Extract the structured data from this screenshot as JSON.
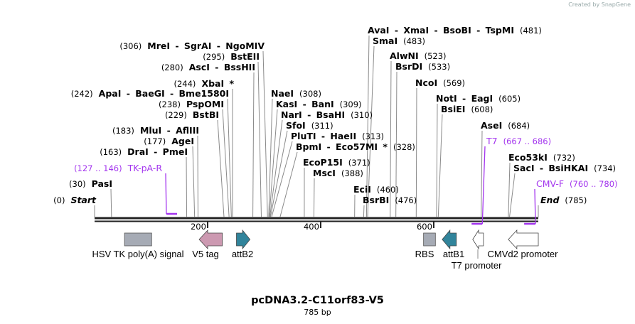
{
  "credit": "Created by SnapGene",
  "title": "pcDNA3.2-C11orf83-V5",
  "length_label": "785 bp",
  "length": 785,
  "ticks": [
    "200",
    "400",
    "600"
  ],
  "sites": [
    {
      "name": "Start",
      "pos": 0
    },
    {
      "name": "PasI",
      "pos": 30
    },
    {
      "name": "DraI - PmeI",
      "pos": 163
    },
    {
      "name": "AgeI",
      "pos": 177
    },
    {
      "name": "MluI - AflIII",
      "pos": 183
    },
    {
      "name": "BstBI",
      "pos": 229
    },
    {
      "name": "PspOMI",
      "pos": 238
    },
    {
      "name": "ApaI - BaeGI - Bme1580I",
      "pos": 242
    },
    {
      "name": "XbaI *",
      "pos": 244
    },
    {
      "name": "AscI - BssHII",
      "pos": 280
    },
    {
      "name": "BstEII",
      "pos": 295
    },
    {
      "name": "MreI - SgrAI - NgoMIV",
      "pos": 306
    },
    {
      "name": "NaeI",
      "pos": 308
    },
    {
      "name": "KasI - BanI",
      "pos": 309
    },
    {
      "name": "NarI - BsaHI",
      "pos": 310
    },
    {
      "name": "SfoI",
      "pos": 311
    },
    {
      "name": "PluTI - HaeII",
      "pos": 313
    },
    {
      "name": "BpmI - Eco57MI *",
      "pos": 328
    },
    {
      "name": "EcoP15I",
      "pos": 371
    },
    {
      "name": "MscI",
      "pos": 388
    },
    {
      "name": "EciI",
      "pos": 460
    },
    {
      "name": "BsrBI",
      "pos": 476
    },
    {
      "name": "AvaI - XmaI - BsoBI - TspMI",
      "pos": 481
    },
    {
      "name": "SmaI",
      "pos": 483
    },
    {
      "name": "AlwNI",
      "pos": 523
    },
    {
      "name": "BsrDI",
      "pos": 533
    },
    {
      "name": "NcoI",
      "pos": 569
    },
    {
      "name": "NotI - EagI",
      "pos": 605
    },
    {
      "name": "BsiEI",
      "pos": 608
    },
    {
      "name": "AseI",
      "pos": 684
    },
    {
      "name": "Eco53kI",
      "pos": 732
    },
    {
      "name": "SacI - BsiHKAI",
      "pos": 734
    },
    {
      "name": "End",
      "pos": 785
    }
  ],
  "primers": [
    {
      "name": "TK-pA-R",
      "range": "127 .. 146",
      "start": 127,
      "end": 146
    },
    {
      "name": "T7",
      "range": "667 .. 686",
      "start": 667,
      "end": 686
    },
    {
      "name": "CMV-F",
      "range": "760 .. 780",
      "start": 760,
      "end": 780
    }
  ],
  "features": [
    {
      "name": "HSV TK poly(A) signal",
      "start": 53,
      "end": 101,
      "shape": "box",
      "color": "#a6abb5"
    },
    {
      "name": "V5 tag",
      "start": 185,
      "end": 226,
      "shape": "arrow-left",
      "color": "#cc99b1"
    },
    {
      "name": "attB2",
      "start": 251,
      "end": 275,
      "shape": "arrow-right",
      "color": "#31849b"
    },
    {
      "name": "RBS",
      "start": 582,
      "end": 603,
      "shape": "box",
      "color": "#a6abb5"
    },
    {
      "name": "attB1",
      "start": 615,
      "end": 640,
      "shape": "arrow-left",
      "color": "#31849b"
    },
    {
      "name": "T7 promoter",
      "start": 669,
      "end": 688,
      "shape": "arrow-left",
      "color": "#ffffff"
    },
    {
      "name": "CMVd2 promoter",
      "start": 732,
      "end": 785,
      "shape": "arrow-left",
      "color": "#ffffff"
    }
  ],
  "colors": {
    "primer": "#a335ee",
    "line": "#888888"
  }
}
